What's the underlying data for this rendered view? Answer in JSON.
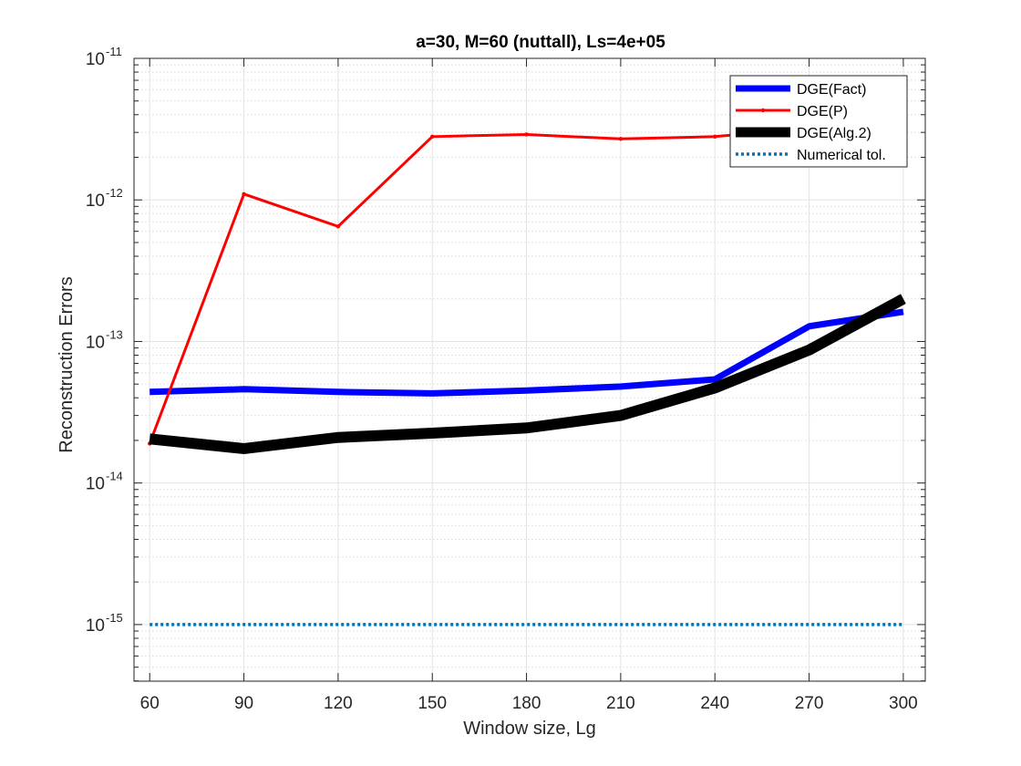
{
  "chart_data": {
    "type": "line",
    "title": "a=30, M=60 (nuttall), Ls=4e+05",
    "xlabel": "Window size, Lg",
    "ylabel": "Reconstruction Errors",
    "x": [
      60,
      90,
      120,
      150,
      180,
      210,
      240,
      270,
      300
    ],
    "xlim": [
      55,
      307
    ],
    "ylim_log10": [
      -15.4,
      -11
    ],
    "y_scale": "log",
    "grid": true,
    "minor_grid": true,
    "legend_position": "top-right",
    "x_ticks": [
      "60",
      "90",
      "120",
      "150",
      "180",
      "210",
      "240",
      "270",
      "300"
    ],
    "y_ticks": [
      {
        "base": "10",
        "exp": "-15",
        "value": -15
      },
      {
        "base": "10",
        "exp": "-14",
        "value": -14
      },
      {
        "base": "10",
        "exp": "-13",
        "value": -13
      },
      {
        "base": "10",
        "exp": "-12",
        "value": -12
      },
      {
        "base": "10",
        "exp": "-11",
        "value": -11
      }
    ],
    "series": [
      {
        "name": "DGE(Fact)",
        "color": "#0000ff",
        "width": 7,
        "style": "solid",
        "values": [
          4.4e-14,
          4.6e-14,
          4.4e-14,
          4.3e-14,
          4.5e-14,
          4.8e-14,
          5.4e-14,
          1.28e-13,
          1.62e-13
        ]
      },
      {
        "name": "DGE(P)",
        "color": "#ff0000",
        "width": 3,
        "style": "solid",
        "values": [
          1.9e-14,
          1.1e-12,
          6.5e-13,
          2.8e-12,
          2.9e-12,
          2.7e-12,
          2.8e-12,
          3.2e-12,
          3.5e-12
        ]
      },
      {
        "name": "DGE(Alg.2)",
        "color": "#000000",
        "width": 12,
        "style": "solid",
        "values": [
          2.05e-14,
          1.75e-14,
          2.1e-14,
          2.25e-14,
          2.45e-14,
          3e-14,
          4.7e-14,
          8.7e-14,
          2e-13
        ]
      },
      {
        "name": "Numerical tol.",
        "color": "#0072bd",
        "width": 3.5,
        "style": "dotted",
        "values": [
          1e-15,
          1e-15,
          1e-15,
          1e-15,
          1e-15,
          1e-15,
          1e-15,
          1e-15,
          1e-15
        ]
      }
    ]
  }
}
